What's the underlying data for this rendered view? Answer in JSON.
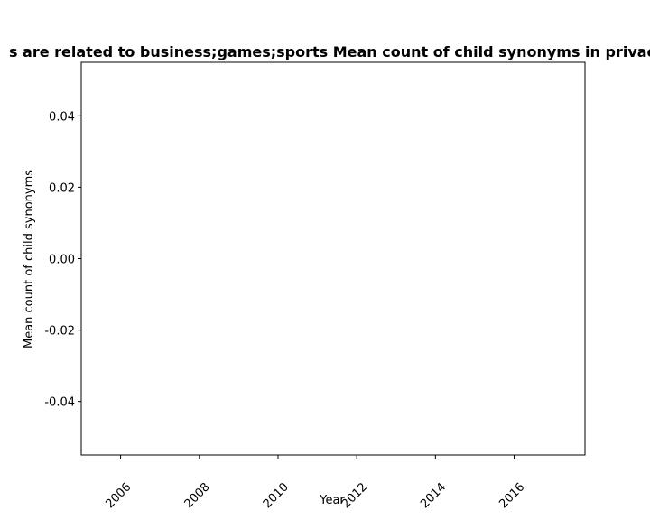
{
  "chart_data": {
    "type": "line",
    "title": "s are related to business;games;sports Mean count of child synonyms in privac",
    "xlabel": "Year",
    "ylabel": "Mean count of child synonyms",
    "xlim": [
      2005,
      2017.8
    ],
    "ylim": [
      -0.055,
      0.055
    ],
    "x_ticks": [
      2006,
      2008,
      2010,
      2012,
      2014,
      2016
    ],
    "y_ticks": [
      "0.04",
      "0.02",
      "0.00",
      "-0.02",
      "-0.04"
    ],
    "y_tick_values": [
      0.04,
      0.02,
      0.0,
      -0.02,
      -0.04
    ],
    "grid": false,
    "series": []
  }
}
